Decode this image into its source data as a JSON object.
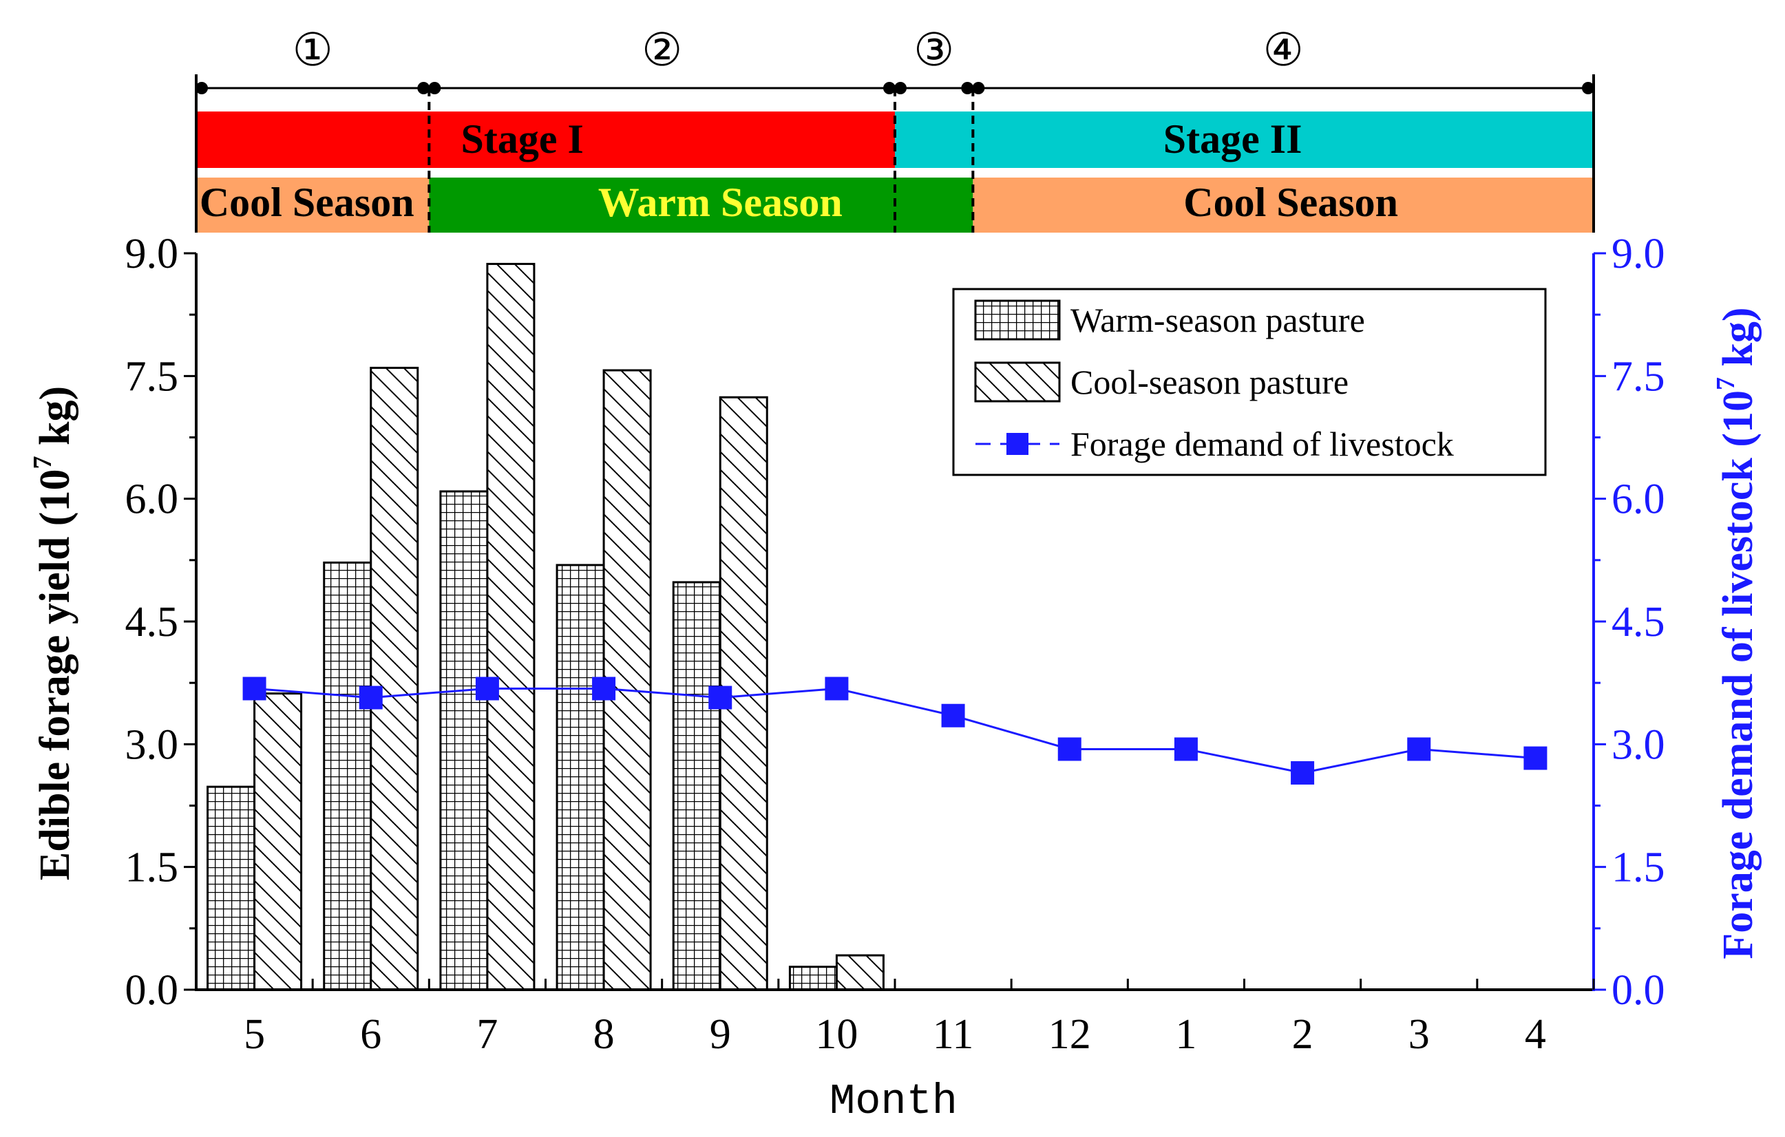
{
  "chart_data": {
    "type": "bar",
    "categories": [
      "5",
      "6",
      "7",
      "8",
      "9",
      "10",
      "11",
      "12",
      "1",
      "2",
      "3",
      "4"
    ],
    "series": [
      {
        "name": "Warm-season pasture",
        "kind": "bar",
        "axis": "left",
        "pattern": "grid",
        "values": [
          2.48,
          5.22,
          6.09,
          5.19,
          4.98,
          0.28,
          0,
          0,
          0,
          0,
          0,
          0
        ]
      },
      {
        "name": "Cool-season pasture",
        "kind": "bar",
        "axis": "left",
        "pattern": "diagonal",
        "values": [
          3.62,
          7.6,
          8.87,
          7.57,
          7.24,
          0.42,
          0,
          0,
          0,
          0,
          0,
          0
        ]
      },
      {
        "name": "Forage demand of livestock",
        "kind": "line",
        "axis": "right",
        "color": "#1a1aff",
        "values": [
          3.68,
          3.57,
          3.68,
          3.68,
          3.57,
          3.68,
          3.35,
          2.94,
          2.94,
          2.65,
          2.94,
          2.83
        ]
      }
    ],
    "xlabel": "Month",
    "ylabel_left": {
      "main": "Edible forage yield (10",
      "sup": "7",
      "unit": " kg)"
    },
    "ylabel_right": {
      "main": "Forage demand of livestock (10",
      "sup": "7",
      "unit": " kg)"
    },
    "ylim": [
      0,
      9
    ],
    "yticks": [
      "0.0",
      "1.5",
      "3.0",
      "4.5",
      "6.0",
      "7.5",
      "9.0"
    ],
    "legend_position": "top-right",
    "legend_order": [
      "Warm-season pasture",
      "Cool-season pasture",
      "Forage demand of livestock"
    ],
    "right_axis_color": "#1a1aff",
    "periods": [
      {
        "label": "①",
        "start_boundary": 0,
        "end_boundary": 2
      },
      {
        "label": "②",
        "start_boundary": 2,
        "end_boundary": 6
      },
      {
        "label": "③",
        "start_boundary": 6,
        "end_boundary": 6.67
      },
      {
        "label": "④",
        "start_boundary": 6.67,
        "end_boundary": 12
      }
    ],
    "stage_bands": [
      {
        "label": "Stage I",
        "start_boundary": 0,
        "end_boundary": 6,
        "color": "#ff0000",
        "text_color": "#000000",
        "label_center": 2.8
      },
      {
        "label": "Stage II",
        "start_boundary": 6,
        "end_boundary": 12,
        "color": "#00cccc",
        "text_color": "#000000",
        "label_center": 8.9
      }
    ],
    "season_bands": [
      {
        "label": "Cool Season",
        "start_boundary": 0,
        "end_boundary": 2,
        "color": "#ffa366",
        "text_color": "#000000",
        "label_center": 0.95
      },
      {
        "label": "Warm Season",
        "start_boundary": 2,
        "end_boundary": 6.67,
        "color": "#009900",
        "text_color": "#ffff33",
        "label_center": 4.5
      },
      {
        "label": "Cool Season",
        "start_boundary": 6.67,
        "end_boundary": 12,
        "color": "#ffa366",
        "text_color": "#000000",
        "label_center": 9.4
      }
    ],
    "dashed_dividers": [
      2,
      6,
      6.67
    ]
  }
}
